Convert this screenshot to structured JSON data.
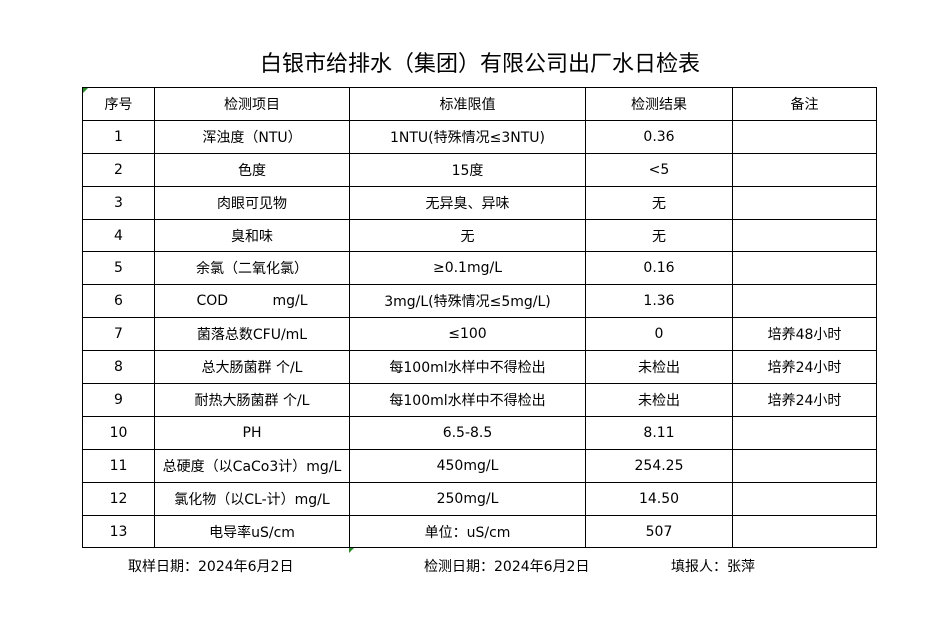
{
  "title": "白银市给排水（集团）有限公司出厂水日检表",
  "headers": [
    "序号",
    "检测项目",
    "标准限值",
    "检测结果",
    "备注"
  ],
  "rows": [
    [
      "1",
      "浑浊度（NTU）",
      "1NTU(特殊情况≤3NTU)",
      "0.36",
      ""
    ],
    [
      "2",
      "色度",
      "15度",
      "<5",
      ""
    ],
    [
      "3",
      "肉眼可见物",
      "无异臭、异味",
      "无",
      ""
    ],
    [
      "4",
      "臭和味",
      "无",
      "无",
      ""
    ],
    [
      "5",
      "余氯（二氧化氯）",
      "≥0.1mg/L",
      "0.16",
      ""
    ],
    [
      "6",
      "COD          mg/L",
      "3mg/L(特殊情况≤5mg/L)",
      "1.36",
      ""
    ],
    [
      "7",
      "菌落总数CFU/mL",
      "≤100",
      "0",
      "培养48小时"
    ],
    [
      "8",
      "总大肠菌群 个/L",
      "每100ml水样中不得检出",
      "未检出",
      "培养24小时"
    ],
    [
      "9",
      "耐热大肠菌群 个/L",
      "每100ml水样中不得检出",
      "未检出",
      "培养24小时"
    ],
    [
      "10",
      "PH",
      "6.5-8.5",
      "8.11",
      ""
    ],
    [
      "11",
      "总硬度（以CaCo3计）mg/L",
      "450mg/L",
      "254.25",
      ""
    ],
    [
      "12",
      "氯化物（以CL-计）mg/L",
      "250mg/L",
      "14.50",
      ""
    ],
    [
      "13",
      "电导率uS/cm",
      "单位：uS/cm",
      "507",
      ""
    ]
  ],
  "footer": {
    "sample_date": "取样日期：2024年6月2日",
    "test_date": "检测日期：2024年6月2日",
    "reporter": "填报人：张萍"
  }
}
